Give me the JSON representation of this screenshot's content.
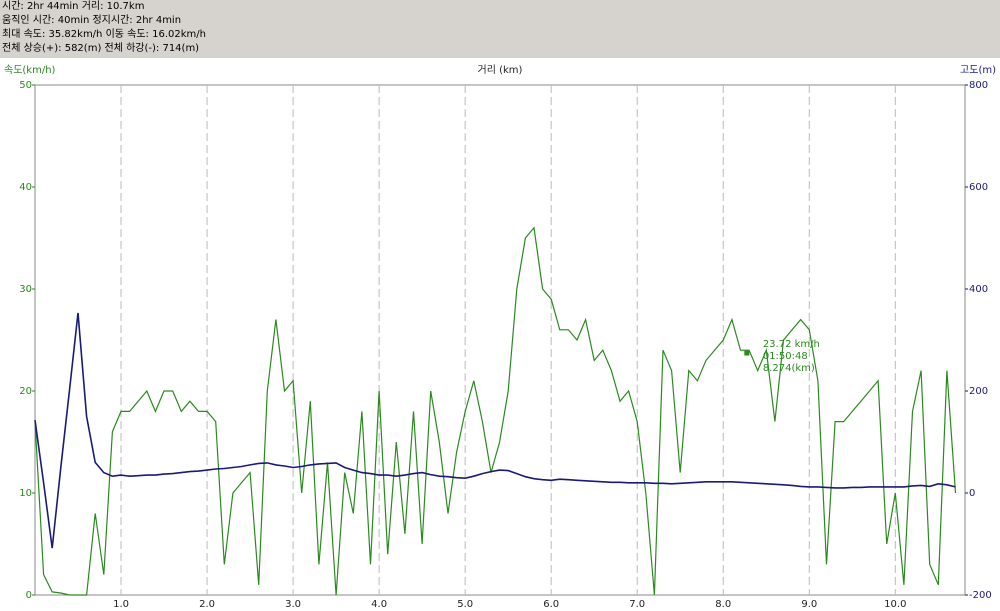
{
  "header": [
    "시간: 2hr 44min  거리: 10.7km",
    "움직인 시간: 40min  정지시간: 2hr 4min",
    "최대 속도: 35.82km/h  이동 속도: 16.02km/h",
    "전체 상승(+): 582(m)  전체 하강(-): 714(m)"
  ],
  "chart_data": {
    "type": "line",
    "ylabel": "속도(km/h)",
    "xlabel": "거리 (km)",
    "y2label": "고도(m)",
    "x": [
      0,
      0.1,
      0.2,
      0.3,
      0.4,
      0.5,
      0.6,
      0.7,
      0.8,
      0.9,
      1.0,
      1.1,
      1.2,
      1.3,
      1.4,
      1.5,
      1.6,
      1.7,
      1.8,
      1.9,
      2.0,
      2.1,
      2.2,
      2.3,
      2.4,
      2.5,
      2.6,
      2.7,
      2.8,
      2.9,
      3.0,
      3.1,
      3.2,
      3.3,
      3.4,
      3.5,
      3.6,
      3.7,
      3.8,
      3.9,
      4.0,
      4.1,
      4.2,
      4.3,
      4.4,
      4.5,
      4.6,
      4.7,
      4.8,
      4.9,
      5.0,
      5.1,
      5.2,
      5.3,
      5.4,
      5.5,
      5.6,
      5.7,
      5.8,
      5.9,
      6.0,
      6.1,
      6.2,
      6.3,
      6.4,
      6.5,
      6.6,
      6.7,
      6.8,
      6.9,
      7.0,
      7.1,
      7.2,
      7.3,
      7.4,
      7.5,
      7.6,
      7.7,
      7.8,
      7.9,
      8.0,
      8.1,
      8.2,
      8.3,
      8.4,
      8.5,
      8.6,
      8.7,
      8.8,
      8.9,
      9.0,
      9.1,
      9.2,
      9.3,
      9.4,
      9.5,
      9.6,
      9.7,
      9.8,
      9.9,
      10.0,
      10.1,
      10.2,
      10.3,
      10.4,
      10.5,
      10.6,
      10.7
    ],
    "series": [
      {
        "name": "속도",
        "color": "#2a8a1e",
        "values": [
          17,
          2,
          0.3,
          0.2,
          0,
          0,
          0,
          8,
          2,
          16,
          18,
          18,
          19,
          20,
          18,
          20,
          20,
          18,
          19,
          18,
          18,
          17,
          3,
          10,
          11,
          12,
          1,
          20,
          27,
          20,
          21,
          10,
          19,
          3,
          13,
          0,
          12,
          8,
          18,
          3,
          20,
          4,
          15,
          6,
          18,
          5,
          20,
          15,
          8,
          14,
          18,
          21,
          17,
          12,
          15,
          20,
          30,
          35,
          36,
          30,
          29,
          26,
          26,
          25,
          27,
          23,
          24,
          22,
          19,
          20,
          17,
          10,
          0,
          24,
          22,
          12,
          22,
          21,
          23,
          24,
          25,
          27,
          24,
          24,
          22,
          24,
          17,
          25,
          26,
          27,
          26,
          21,
          3,
          17,
          17,
          18,
          19,
          20,
          21,
          5,
          10,
          1,
          18,
          22,
          3,
          1,
          22,
          10
        ]
      },
      {
        "name": "고도",
        "color": "#1a1a7a",
        "axis": "y2",
        "values": [
          143,
          20,
          -108,
          50,
          200,
          353,
          150,
          60,
          40,
          33,
          35,
          33,
          34,
          35,
          35,
          37,
          38,
          40,
          42,
          43,
          45,
          47,
          48,
          50,
          52,
          55,
          58,
          59,
          55,
          53,
          50,
          52,
          55,
          57,
          58,
          59,
          50,
          45,
          40,
          38,
          35,
          35,
          33,
          35,
          38,
          40,
          36,
          33,
          32,
          30,
          29,
          33,
          38,
          42,
          45,
          44,
          38,
          32,
          28,
          26,
          25,
          27,
          26,
          25,
          24,
          23,
          22,
          21,
          21,
          20,
          20,
          20,
          19,
          19,
          18,
          19,
          20,
          21,
          22,
          22,
          22,
          22,
          21,
          20,
          19,
          18,
          17,
          16,
          15,
          13,
          12,
          12,
          11,
          10,
          10,
          11,
          11,
          12,
          12,
          12,
          12,
          12,
          14,
          15,
          13,
          18,
          16,
          12
        ]
      }
    ],
    "xlim": [
      0,
      10.81
    ],
    "xticks": [
      {
        "value": 1,
        "label": "1.0"
      },
      {
        "value": 2,
        "label": "2.0"
      },
      {
        "value": 3,
        "label": "3.0"
      },
      {
        "value": 4,
        "label": "4.0"
      },
      {
        "value": 5,
        "label": "5.0"
      },
      {
        "value": 6,
        "label": "6.0"
      },
      {
        "value": 7,
        "label": "7.0"
      },
      {
        "value": 8,
        "label": "8.0"
      },
      {
        "value": 9,
        "label": "9.0"
      },
      {
        "value": 10,
        "label": "10.0"
      }
    ],
    "ylim": [
      0,
      50
    ],
    "yticks": [
      0,
      10,
      20,
      30,
      40,
      50
    ],
    "y2lim": [
      -200,
      800
    ],
    "y2ticks": [
      -200,
      0,
      200,
      400,
      600,
      800
    ],
    "grid": true,
    "annotation": {
      "x": 8.274,
      "y": 23.72,
      "lines": [
        "23.72 km/h",
        "01:50:48",
        "8.274(km)"
      ]
    }
  }
}
